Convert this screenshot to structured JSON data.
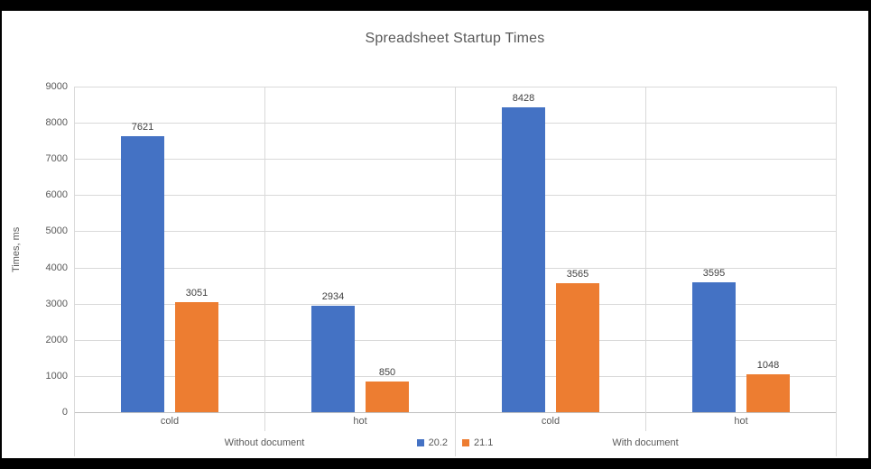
{
  "window": {
    "background": "#000000",
    "panel_background": "#FFFFFF"
  },
  "chart_data": {
    "type": "bar",
    "title": "Spreadsheet Startup Times",
    "xlabel": "",
    "ylabel": "Times, ms",
    "ylim": [
      0,
      9000
    ],
    "yticks": [
      0,
      1000,
      2000,
      3000,
      4000,
      5000,
      6000,
      7000,
      8000,
      9000
    ],
    "categories": [
      "cold",
      "hot",
      "cold",
      "hot"
    ],
    "group_size": 2,
    "group_labels": [
      "Without document",
      "With document"
    ],
    "series": [
      {
        "name": "20.2",
        "color": "#4472C4",
        "values": [
          7621,
          2934,
          8428,
          3595
        ]
      },
      {
        "name": "21.1",
        "color": "#ED7D31",
        "values": [
          3051,
          850,
          3565,
          1048
        ]
      }
    ],
    "data_labels_shown": true,
    "legend_position": "bottom-center",
    "grid": true,
    "colors": {
      "bar_blue": "#4472C4",
      "bar_orange": "#ED7D31",
      "gridline": "#D9D9D9",
      "axis_line": "#BFBFBF",
      "title_text": "#595959",
      "tick_text": "#595959",
      "data_label_text": "#404040"
    }
  }
}
